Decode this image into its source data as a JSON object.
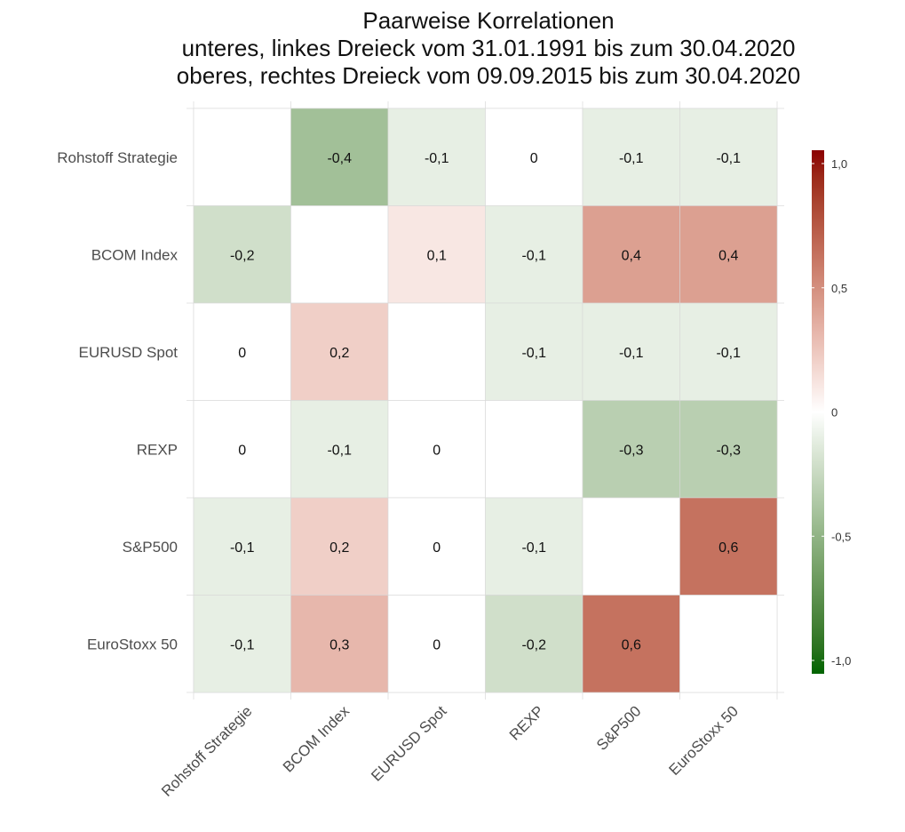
{
  "chart_data": {
    "type": "heatmap",
    "title": "Paarweise Korrelationen",
    "subtitle_lines": [
      "unteres, linkes Dreieck vom 31.01.1991 bis zum 30.04.2020",
      "oberes, rechtes Dreieck vom 09.09.2015 bis zum 30.04.2020"
    ],
    "rows": [
      "Rohstoff Strategie",
      "BCOM Index",
      "EURUSD Spot",
      "REXP",
      "S&P500",
      "EuroStoxx 50"
    ],
    "columns": [
      "Rohstoff Strategie",
      "BCOM Index",
      "EURUSD Spot",
      "REXP",
      "S&P500",
      "EuroStoxx 50"
    ],
    "values": [
      [
        null,
        -0.4,
        -0.1,
        0,
        -0.1,
        -0.1
      ],
      [
        -0.2,
        null,
        0.1,
        -0.1,
        0.4,
        0.4
      ],
      [
        0,
        0.2,
        null,
        -0.1,
        -0.1,
        -0.1
      ],
      [
        0,
        -0.1,
        0,
        null,
        -0.3,
        -0.3
      ],
      [
        -0.1,
        0.2,
        0,
        -0.1,
        null,
        0.6
      ],
      [
        -0.1,
        0.3,
        0,
        -0.2,
        0.6,
        null
      ]
    ],
    "value_labels": [
      [
        "",
        "-0,4",
        "-0,1",
        "0",
        "-0,1",
        "-0,1"
      ],
      [
        "-0,2",
        "",
        "0,1",
        "-0,1",
        "0,4",
        "0,4"
      ],
      [
        "0",
        "0,2",
        "",
        "-0,1",
        "-0,1",
        "-0,1"
      ],
      [
        "0",
        "-0,1",
        "0",
        "",
        "-0,3",
        "-0,3"
      ],
      [
        "-0,1",
        "0,2",
        "0",
        "-0,1",
        "",
        "0,6"
      ],
      [
        "-0,1",
        "0,3",
        "0",
        "-0,2",
        "0,6",
        ""
      ]
    ],
    "colorbar": {
      "range": [
        -1,
        1
      ],
      "ticks": [
        1,
        0.5,
        0,
        -0.5,
        -1
      ],
      "tick_labels": [
        "1,0",
        "0,5",
        "0",
        "-0,5",
        "-1,0"
      ],
      "low_color": "#006400",
      "mid_color": "#ffffff",
      "high_color": "#8b0000"
    },
    "grid": true,
    "legend_placement": "right"
  }
}
